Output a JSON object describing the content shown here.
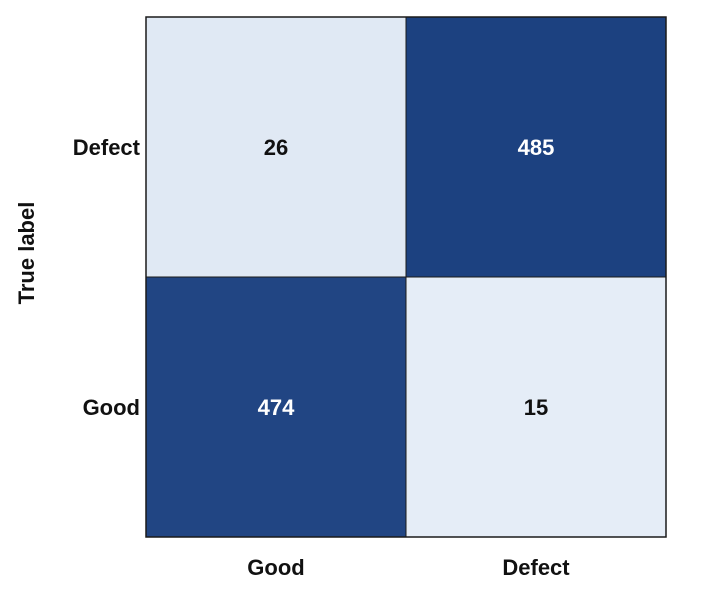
{
  "chart_data": {
    "type": "heatmap",
    "ylabel": "True label",
    "xlabel": "",
    "x_categories": [
      "Good",
      "Defect"
    ],
    "y_categories": [
      "Defect",
      "Good"
    ],
    "values": [
      [
        26,
        485
      ],
      [
        474,
        15
      ]
    ],
    "colors": {
      "low": "#e5edf7",
      "high": "#1c4180",
      "text_on_low": "#111111",
      "text_on_high": "#ffffff",
      "border": "#1a1a1a"
    }
  }
}
